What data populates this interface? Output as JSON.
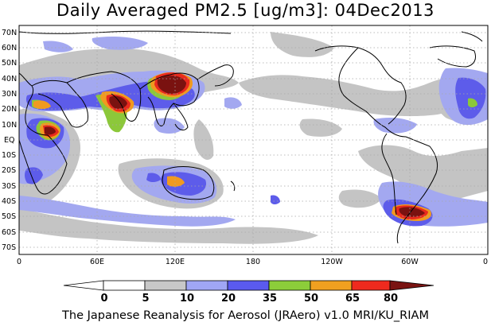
{
  "title": "Daily Averaged PM2.5 [ug/m3]: 04Dec2013",
  "footer": "The Japanese Reanalysis for Aerosol (JRAero) v1.0 MRI/KU_RIAM",
  "axes": {
    "lat_labels": [
      "70N",
      "60N",
      "50N",
      "40N",
      "30N",
      "20N",
      "10N",
      "EQ",
      "10S",
      "20S",
      "30S",
      "40S",
      "50S",
      "60S",
      "70S"
    ],
    "lon_labels": [
      "0",
      "60E",
      "120E",
      "180",
      "120W",
      "60W",
      "0"
    ]
  },
  "colorbar": {
    "levels": [
      "0",
      "5",
      "10",
      "20",
      "35",
      "50",
      "65",
      "80"
    ],
    "colors": [
      "#ffffff",
      "#c8c8c8",
      "#a0a6f5",
      "#5a5aef",
      "#8ccd3a",
      "#f0a020",
      "#ee2a1e",
      "#7a1412"
    ]
  },
  "map_colors": {
    "ocean": "#ffffff",
    "grey": "#c4c4c4",
    "lightblue": "#a3a8f0",
    "blue": "#5d5cea",
    "green": "#8cc83a",
    "orange": "#f09a20",
    "red": "#e82a1e",
    "darkred": "#7a1210",
    "coast": "#000000",
    "grid": "#b0b0b0"
  }
}
